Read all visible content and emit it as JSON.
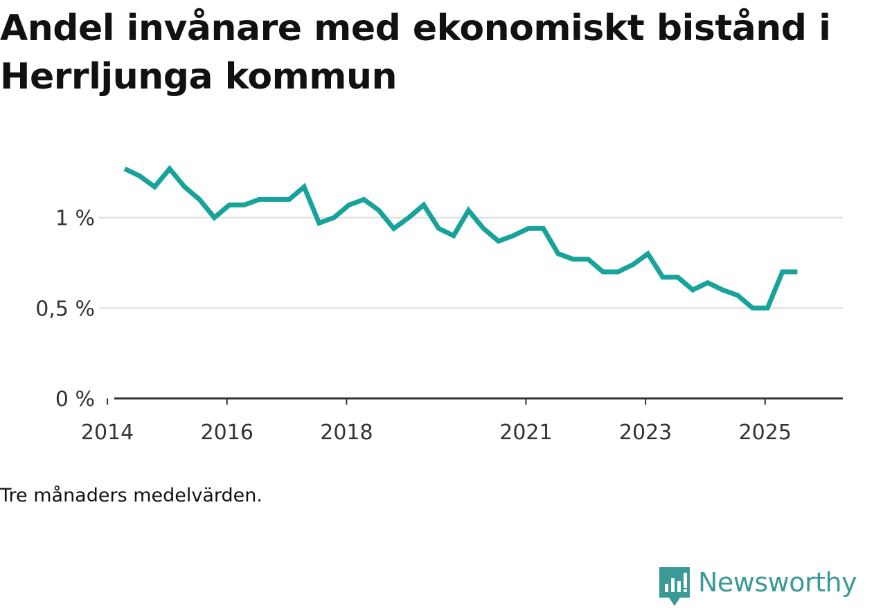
{
  "title": "Andel invånare med ekonomiskt bistånd i Herrljunga kommun",
  "note": "Tre månaders medelvärden.",
  "brand": {
    "name": "Newsworthy",
    "icon": "newsworthy-logo-icon",
    "color": "#3a9a95"
  },
  "colors": {
    "line": "#17a39a",
    "grid": "#dddddd",
    "axis": "#333333"
  },
  "chart_data": {
    "type": "line",
    "title": "Andel invånare med ekonomiskt bistånd i Herrljunga kommun",
    "xlabel": "",
    "ylabel": "",
    "xlim": [
      2013.86,
      2026.3
    ],
    "ylim": [
      0,
      1.4
    ],
    "grid": true,
    "y_ticks": [
      {
        "value": 0,
        "label": "0 %"
      },
      {
        "value": 0.5,
        "label": "0,5 %"
      },
      {
        "value": 1,
        "label": "1 %"
      }
    ],
    "x_ticks": [
      {
        "value": 2014,
        "label": "2014"
      },
      {
        "value": 2016,
        "label": "2016"
      },
      {
        "value": 2018,
        "label": "2018"
      },
      {
        "value": 2021,
        "label": "2021"
      },
      {
        "value": 2023,
        "label": "2023"
      },
      {
        "value": 2025,
        "label": "2025"
      }
    ],
    "series": [
      {
        "name": "Andel invånare med ekonomiskt bistånd",
        "x": [
          2014.29,
          2014.54,
          2014.79,
          2015.04,
          2015.29,
          2015.54,
          2015.79,
          2016.04,
          2016.29,
          2016.54,
          2016.79,
          2017.04,
          2017.29,
          2017.54,
          2017.79,
          2018.04,
          2018.29,
          2018.54,
          2018.79,
          2019.04,
          2019.29,
          2019.54,
          2019.79,
          2020.04,
          2020.29,
          2020.54,
          2020.79,
          2021.04,
          2021.29,
          2021.54,
          2021.79,
          2022.04,
          2022.29,
          2022.54,
          2022.79,
          2023.04,
          2023.29,
          2023.54,
          2023.79,
          2024.04,
          2024.29,
          2024.54,
          2024.79,
          2025.04,
          2025.29,
          2025.54
        ],
        "values": [
          1.27,
          1.23,
          1.17,
          1.27,
          1.17,
          1.1,
          1.0,
          1.07,
          1.07,
          1.1,
          1.1,
          1.1,
          1.17,
          0.97,
          1.0,
          1.07,
          1.1,
          1.04,
          0.94,
          1.0,
          1.07,
          0.94,
          0.9,
          1.04,
          0.94,
          0.87,
          0.9,
          0.94,
          0.94,
          0.8,
          0.77,
          0.77,
          0.7,
          0.7,
          0.74,
          0.8,
          0.67,
          0.67,
          0.6,
          0.64,
          0.6,
          0.57,
          0.5,
          0.5,
          0.7,
          0.7
        ]
      }
    ]
  }
}
